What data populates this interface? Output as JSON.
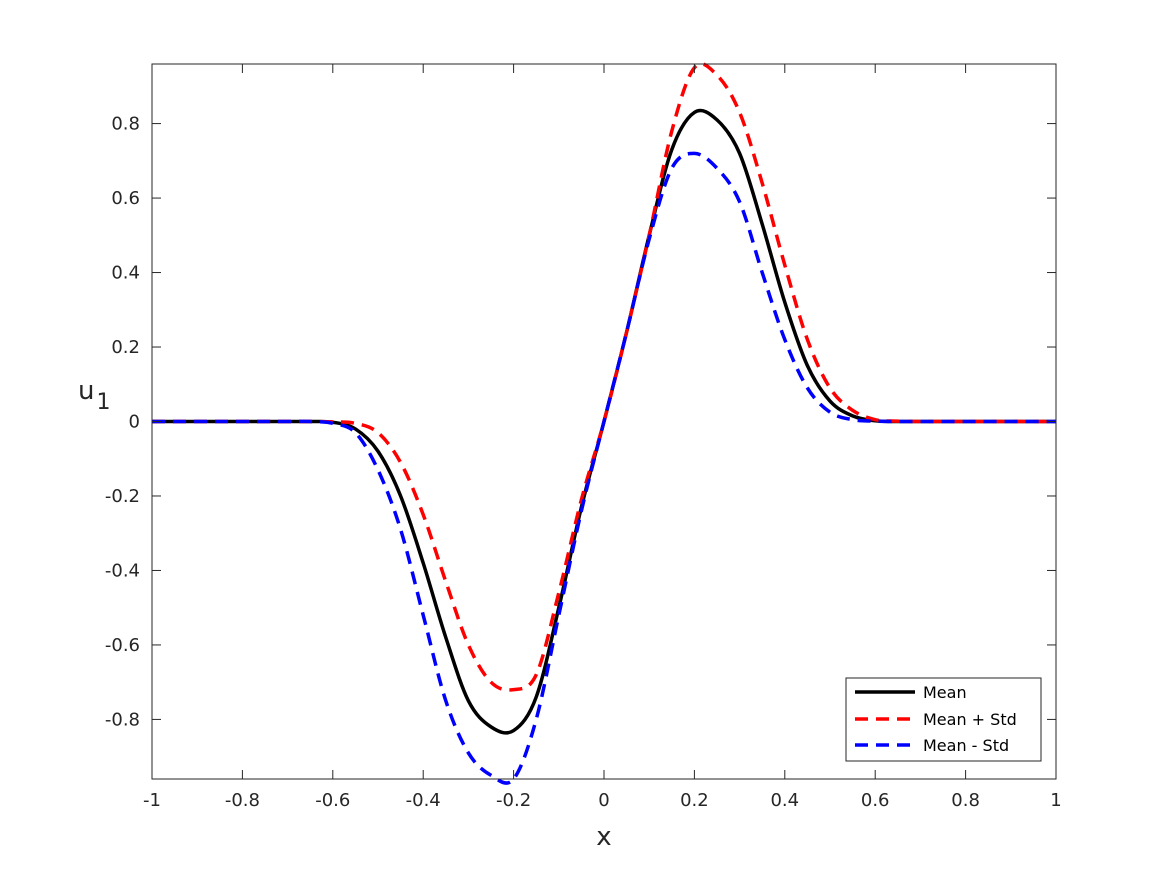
{
  "chart_data": {
    "type": "line",
    "title": "",
    "xlabel": "x",
    "ylabel": "u_1",
    "ylabel_main": "u",
    "ylabel_sub": "1",
    "xlim": [
      -1,
      1
    ],
    "ylim": [
      -0.96,
      0.96
    ],
    "xticks": [
      -1,
      -0.8,
      -0.6,
      -0.4,
      -0.2,
      0,
      0.2,
      0.4,
      0.6,
      0.8,
      1
    ],
    "xtick_labels": [
      "-1",
      "-0.8",
      "-0.6",
      "-0.4",
      "-0.2",
      "0",
      "0.2",
      "0.4",
      "0.6",
      "0.8",
      "1"
    ],
    "yticks": [
      -0.8,
      -0.6,
      -0.4,
      -0.2,
      0,
      0.2,
      0.4,
      0.6,
      0.8
    ],
    "ytick_labels": [
      "-0.8",
      "-0.6",
      "-0.4",
      "-0.2",
      "0",
      "0.2",
      "0.4",
      "0.6",
      "0.8"
    ],
    "grid": false,
    "legend_position": "bottom-right",
    "x": [
      -1,
      -0.9,
      -0.8,
      -0.7,
      -0.65,
      -0.6,
      -0.55,
      -0.5,
      -0.45,
      -0.4,
      -0.35,
      -0.3,
      -0.25,
      -0.2,
      -0.15,
      -0.1,
      -0.05,
      0,
      0.05,
      0.1,
      0.15,
      0.2,
      0.25,
      0.3,
      0.35,
      0.4,
      0.45,
      0.5,
      0.55,
      0.6,
      0.65,
      0.7,
      0.8,
      0.9,
      1
    ],
    "series": [
      {
        "name": "Mean",
        "color": "#000000",
        "dash": "solid",
        "values": [
          0,
          0,
          0,
          0,
          0,
          -0.002,
          -0.02,
          -0.08,
          -0.2,
          -0.38,
          -0.58,
          -0.75,
          -0.82,
          -0.83,
          -0.74,
          -0.5,
          -0.23,
          0,
          0.24,
          0.5,
          0.73,
          0.83,
          0.81,
          0.72,
          0.53,
          0.32,
          0.15,
          0.055,
          0.015,
          0.002,
          0,
          0,
          0,
          0,
          0
        ]
      },
      {
        "name": "Mean + Std",
        "color": "#ff0000",
        "dash": "dashed",
        "values": [
          0,
          0,
          0,
          0,
          0,
          -0.001,
          -0.005,
          -0.03,
          -0.11,
          -0.25,
          -0.43,
          -0.6,
          -0.7,
          -0.72,
          -0.68,
          -0.46,
          -0.21,
          0,
          0.24,
          0.5,
          0.78,
          0.95,
          0.93,
          0.83,
          0.64,
          0.42,
          0.22,
          0.09,
          0.03,
          0.005,
          0.001,
          0,
          0,
          0,
          0
        ]
      },
      {
        "name": "Mean - Std",
        "color": "#0000ff",
        "dash": "dashed",
        "values": [
          0,
          0,
          0,
          0,
          0,
          -0.005,
          -0.03,
          -0.13,
          -0.29,
          -0.52,
          -0.75,
          -0.89,
          -0.95,
          -0.96,
          -0.8,
          -0.52,
          -0.24,
          0,
          0.24,
          0.49,
          0.68,
          0.72,
          0.68,
          0.59,
          0.4,
          0.22,
          0.09,
          0.025,
          0.005,
          0.001,
          0,
          0,
          0,
          0,
          0
        ]
      }
    ]
  }
}
